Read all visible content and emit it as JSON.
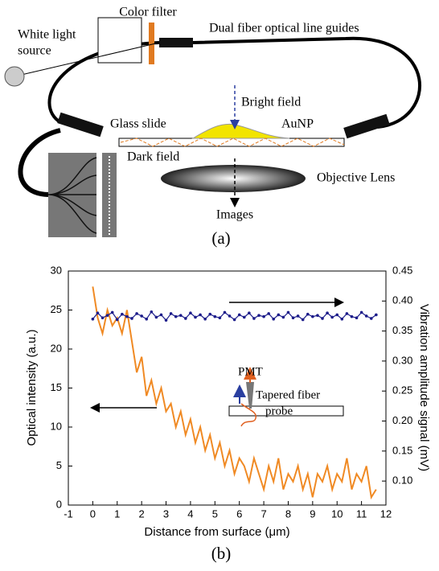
{
  "diagram": {
    "color_filter": "Color filter",
    "white_light": [
      "White light",
      "source"
    ],
    "fiber_guides": "Dual fiber optical line guides",
    "bright_field": "Bright field",
    "glass_slide": "Glass slide",
    "aunp": "AuNP",
    "dark_field": "Dark field",
    "objective_lens": "Objective Lens",
    "images": "Images",
    "panel": "(a)"
  },
  "chart_data": {
    "type": "line",
    "panel": "(b)",
    "x_label": "Distance from surface (μm)",
    "y_label": "Optical intensity (a.u.)",
    "y2_label": "Vibration amplitude signal (mV)",
    "annotations": [
      "PMT",
      "Tapered fiber",
      "probe"
    ],
    "x": [
      0,
      0.2,
      0.4,
      0.6,
      0.8,
      1,
      1.2,
      1.4,
      1.6,
      1.8,
      2,
      2.2,
      2.4,
      2.6,
      2.8,
      3,
      3.2,
      3.4,
      3.6,
      3.8,
      4,
      4.2,
      4.4,
      4.6,
      4.8,
      5,
      5.2,
      5.4,
      5.6,
      5.8,
      6,
      6.2,
      6.4,
      6.6,
      6.8,
      7,
      7.2,
      7.4,
      7.6,
      7.8,
      8,
      8.2,
      8.4,
      8.6,
      8.8,
      9,
      9.2,
      9.4,
      9.6,
      9.8,
      10,
      10.2,
      10.4,
      10.6,
      10.8,
      11,
      11.2,
      11.4,
      11.6
    ],
    "series": [
      {
        "color": "#f08a24",
        "values": [
          28,
          24,
          22,
          25,
          23,
          24,
          22,
          25,
          21,
          17,
          19,
          14,
          16,
          13,
          15,
          12,
          13,
          10,
          12,
          9,
          11,
          8,
          10,
          7,
          9,
          6,
          8,
          5,
          7,
          4,
          6,
          5,
          3,
          6,
          4,
          2,
          5,
          3,
          6,
          2,
          4,
          3,
          5,
          2,
          4,
          1,
          4,
          3,
          5,
          2,
          4,
          3,
          6,
          2,
          4,
          3,
          5,
          1,
          2
        ]
      },
      {
        "color": "#1c1c8a",
        "axis": "y2",
        "values": [
          0.37,
          0.38,
          0.372,
          0.376,
          0.381,
          0.369,
          0.378,
          0.374,
          0.371,
          0.379,
          0.375,
          0.37,
          0.382,
          0.373,
          0.377,
          0.368,
          0.379,
          0.374,
          0.376,
          0.371,
          0.38,
          0.373,
          0.377,
          0.37,
          0.378,
          0.374,
          0.372,
          0.381,
          0.375,
          0.369,
          0.377,
          0.373,
          0.38,
          0.371,
          0.376,
          0.374,
          0.379,
          0.37,
          0.377,
          0.373,
          0.381,
          0.372,
          0.375,
          0.369,
          0.378,
          0.374,
          0.376,
          0.371,
          0.38,
          0.373,
          0.377,
          0.37,
          0.379,
          0.374,
          0.372,
          0.381,
          0.375,
          0.371,
          0.377
        ]
      }
    ],
    "xlim": [
      -1,
      12
    ],
    "xticks": [
      -1,
      0,
      1,
      2,
      3,
      4,
      5,
      6,
      7,
      8,
      9,
      10,
      11,
      12
    ],
    "ylim": [
      0,
      30
    ],
    "yticks": [
      0,
      5,
      10,
      15,
      20,
      25,
      30
    ],
    "y2lim": [
      0.06,
      0.45
    ],
    "y2ticks": [
      {
        "value": 0.1,
        "label": "0.10"
      },
      0.15,
      {
        "value": 0.2,
        "label": "0.20"
      },
      0.25,
      {
        "value": 0.3,
        "label": "0.30"
      },
      0.35,
      {
        "value": 0.4,
        "label": "0.40"
      },
      0.45
    ]
  }
}
